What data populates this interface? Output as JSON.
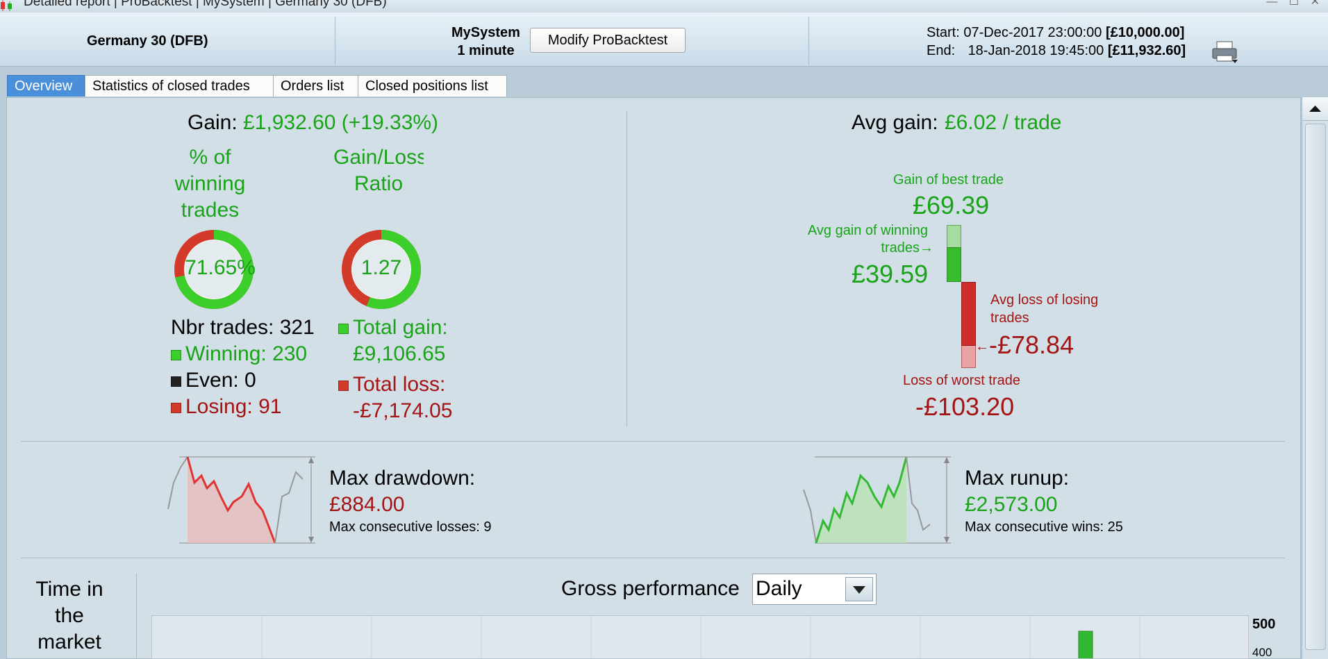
{
  "window": {
    "title": "Detailed report | ProBacktest | MySystem | Germany 30 (DFB)"
  },
  "header": {
    "instrument": "Germany 30 (DFB)",
    "system_name": "MySystem",
    "timeframe": "1 minute",
    "modify_button": "Modify ProBacktest",
    "start_label": "Start:",
    "start_date": "07-Dec-2017 23:00:00",
    "start_capital": "[£10,000.00]",
    "end_label": "End:",
    "end_date": "18-Jan-2018 19:45:00",
    "end_capital": "[£11,932.60]"
  },
  "tabs": [
    {
      "label": "Overview",
      "active": true
    },
    {
      "label": "Statistics of closed trades",
      "active": false
    },
    {
      "label": "Orders list",
      "active": false
    },
    {
      "label": "Closed positions list",
      "active": false
    }
  ],
  "overview": {
    "gain_label": "Gain:",
    "gain_value": "£1,932.60 (+19.33%)",
    "pct_winning_label": "% of winning trades",
    "pct_winning_value": "71.65%",
    "pct_winning_fraction": 0.7165,
    "gain_loss_label": "Gain/Loss Ratio",
    "gain_loss_value": "1.27",
    "gain_loss_green_fraction": 0.56,
    "nbr_trades": "Nbr trades: 321",
    "winning": "Winning: 230",
    "even": "Even: 0",
    "losing": "Losing: 91",
    "total_gain_label": "Total gain:",
    "total_gain_value": "£9,106.65",
    "total_loss_label": "Total loss:",
    "total_loss_value": "-£7,174.05"
  },
  "avg": {
    "label": "Avg gain:",
    "value": "£6.02 / trade",
    "best_label": "Gain of best trade",
    "best_value": "£69.39",
    "avg_win_label_1": "Avg gain of winning",
    "avg_win_label_2": "trades",
    "avg_win_value": "£39.59",
    "avg_loss_label_1": "Avg loss of losing",
    "avg_loss_label_2": "trades",
    "avg_loss_value": "-£78.84",
    "worst_label": "Loss of worst trade",
    "worst_value": "-£103.20"
  },
  "drawdown": {
    "label": "Max drawdown:",
    "value": "£884.00",
    "consecutive": "Max consecutive losses: 9"
  },
  "runup": {
    "label": "Max runup:",
    "value": "£2,573.00",
    "consecutive": "Max consecutive wins: 25"
  },
  "gross": {
    "title": "Gross performance",
    "period": "Daily",
    "y_ticks": [
      "500",
      "400"
    ],
    "time_in_market": "Time in the market"
  },
  "colors": {
    "green": "#18a318",
    "red": "#a51414",
    "tab_active": "#4a8fd9"
  }
}
